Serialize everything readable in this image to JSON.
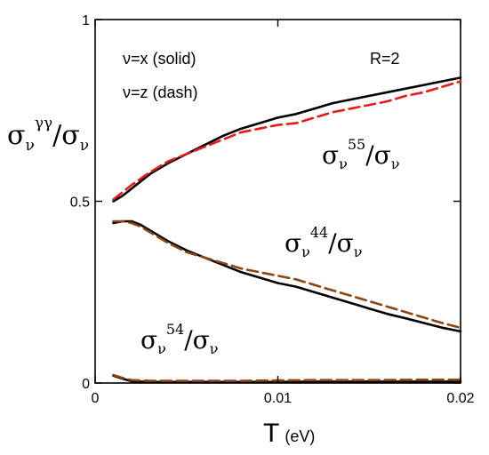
{
  "chart_data": {
    "type": "line",
    "xlim": [
      0,
      0.02
    ],
    "ylim": [
      0,
      1
    ],
    "grid": false,
    "x_ticks": [
      {
        "value": 0,
        "label": "0"
      },
      {
        "value": 0.01,
        "label": "0.01"
      },
      {
        "value": 0.02,
        "label": "0.02"
      }
    ],
    "y_ticks": [
      {
        "value": 0,
        "label": "0"
      },
      {
        "value": 0.5,
        "label": "0.5"
      },
      {
        "value": 1,
        "label": "1"
      }
    ],
    "xlabel": {
      "main": "T",
      "unit": "(eV)"
    },
    "ylabel": {
      "sigma": "σ",
      "sub": "ν",
      "sup": "γγ",
      "slash": "/"
    },
    "annotations": {
      "solid_note": "ν=x (solid)",
      "dash_note": "ν=z (dash)",
      "r_note": "R=2"
    },
    "curve_labels": [
      {
        "sigma": "σ",
        "sub": "ν",
        "sup": "55",
        "slash": "/"
      },
      {
        "sigma": "σ",
        "sub": "ν",
        "sup": "44",
        "slash": "/"
      },
      {
        "sigma": "σ",
        "sub": "ν",
        "sup": "54",
        "slash": "/"
      }
    ],
    "series": [
      {
        "style": "solid",
        "color": "#000000",
        "x": [
          0.001,
          0.0015,
          0.002,
          0.003,
          0.004,
          0.005,
          0.006,
          0.007,
          0.008,
          0.009,
          0.01,
          0.011,
          0.012,
          0.013,
          0.014,
          0.015,
          0.016,
          0.017,
          0.018,
          0.019,
          0.02
        ],
        "y": [
          0.5,
          0.515,
          0.535,
          0.575,
          0.605,
          0.63,
          0.655,
          0.68,
          0.7,
          0.715,
          0.73,
          0.74,
          0.755,
          0.77,
          0.78,
          0.79,
          0.8,
          0.81,
          0.82,
          0.83,
          0.84
        ]
      },
      {
        "style": "dash",
        "color": "#e8191c",
        "x": [
          0.001,
          0.0015,
          0.002,
          0.003,
          0.004,
          0.005,
          0.006,
          0.007,
          0.008,
          0.009,
          0.01,
          0.011,
          0.012,
          0.013,
          0.014,
          0.015,
          0.016,
          0.017,
          0.018,
          0.019,
          0.02
        ],
        "y": [
          0.505,
          0.525,
          0.545,
          0.58,
          0.61,
          0.63,
          0.65,
          0.67,
          0.69,
          0.7,
          0.71,
          0.715,
          0.73,
          0.745,
          0.755,
          0.765,
          0.775,
          0.79,
          0.8,
          0.815,
          0.83
        ]
      },
      {
        "style": "solid",
        "color": "#000000",
        "x": [
          0.001,
          0.0015,
          0.002,
          0.0025,
          0.003,
          0.004,
          0.005,
          0.006,
          0.007,
          0.008,
          0.009,
          0.01,
          0.011,
          0.012,
          0.013,
          0.014,
          0.015,
          0.016,
          0.017,
          0.018,
          0.019,
          0.02
        ],
        "y": [
          0.44,
          0.445,
          0.445,
          0.435,
          0.42,
          0.39,
          0.365,
          0.345,
          0.325,
          0.305,
          0.29,
          0.275,
          0.265,
          0.25,
          0.235,
          0.22,
          0.205,
          0.19,
          0.178,
          0.165,
          0.152,
          0.142
        ]
      },
      {
        "style": "dash",
        "color": "#8b4513",
        "x": [
          0.001,
          0.0015,
          0.002,
          0.0025,
          0.003,
          0.004,
          0.005,
          0.006,
          0.007,
          0.008,
          0.009,
          0.01,
          0.011,
          0.012,
          0.013,
          0.014,
          0.015,
          0.016,
          0.017,
          0.018,
          0.019,
          0.02
        ],
        "y": [
          0.445,
          0.445,
          0.44,
          0.43,
          0.415,
          0.385,
          0.36,
          0.345,
          0.33,
          0.315,
          0.305,
          0.295,
          0.285,
          0.27,
          0.255,
          0.24,
          0.225,
          0.21,
          0.195,
          0.18,
          0.165,
          0.152
        ]
      },
      {
        "style": "solid",
        "color": "#000000",
        "x": [
          0.001,
          0.0015,
          0.002,
          0.003,
          0.005,
          0.008,
          0.01,
          0.012,
          0.015,
          0.018,
          0.02
        ],
        "y": [
          0.02,
          0.012,
          0.005,
          0.003,
          0.003,
          0.003,
          0.003,
          0.004,
          0.004,
          0.004,
          0.004
        ]
      },
      {
        "style": "dash",
        "color": "#8b4513",
        "x": [
          0.001,
          0.0015,
          0.002,
          0.003,
          0.005,
          0.008,
          0.01,
          0.012,
          0.015,
          0.018,
          0.02
        ],
        "y": [
          0.022,
          0.014,
          0.008,
          0.006,
          0.006,
          0.006,
          0.007,
          0.008,
          0.008,
          0.009,
          0.009
        ]
      }
    ]
  }
}
